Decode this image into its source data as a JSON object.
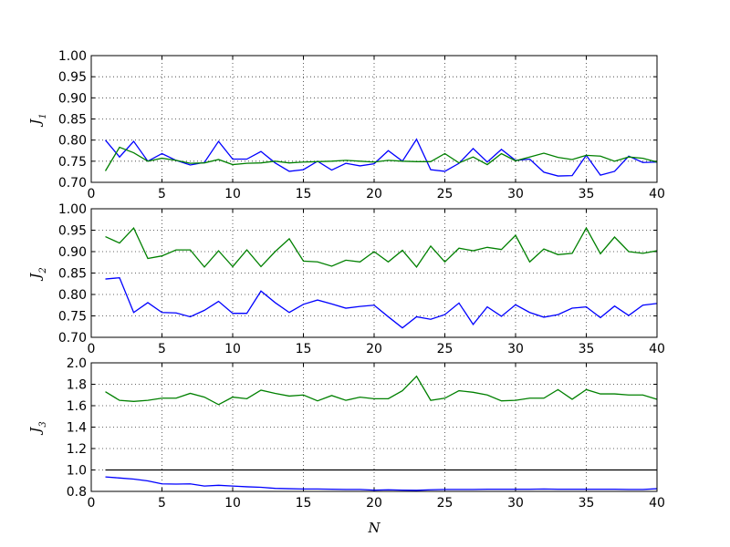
{
  "chart_data": [
    {
      "type": "line",
      "ylabel": "J",
      "ylabel_sub": "1",
      "xlim": [
        0,
        40
      ],
      "ylim": [
        0.7,
        1.0
      ],
      "xticks": [
        "0",
        "5",
        "10",
        "15",
        "20",
        "25",
        "30",
        "35",
        "40"
      ],
      "yticks": [
        "0.70",
        "0.75",
        "0.80",
        "0.85",
        "0.90",
        "0.95",
        "1.00"
      ],
      "grid": true,
      "x": [
        1,
        2,
        3,
        4,
        5,
        6,
        7,
        8,
        9,
        10,
        11,
        12,
        13,
        14,
        15,
        16,
        17,
        18,
        19,
        20,
        21,
        22,
        23,
        24,
        25,
        26,
        27,
        28,
        29,
        30,
        31,
        32,
        33,
        34,
        35,
        36,
        37,
        38,
        39,
        40
      ],
      "series": [
        {
          "color": "#0000ff",
          "values": [
            0.8,
            0.76,
            0.797,
            0.75,
            0.768,
            0.752,
            0.741,
            0.747,
            0.797,
            0.755,
            0.755,
            0.773,
            0.746,
            0.726,
            0.73,
            0.75,
            0.729,
            0.745,
            0.739,
            0.744,
            0.775,
            0.75,
            0.802,
            0.73,
            0.726,
            0.745,
            0.78,
            0.748,
            0.778,
            0.752,
            0.755,
            0.724,
            0.715,
            0.716,
            0.764,
            0.717,
            0.726,
            0.762,
            0.747,
            0.748
          ]
        },
        {
          "color": "#008000",
          "values": [
            0.727,
            0.783,
            0.77,
            0.75,
            0.757,
            0.752,
            0.745,
            0.746,
            0.754,
            0.742,
            0.745,
            0.746,
            0.75,
            0.746,
            0.748,
            0.749,
            0.75,
            0.752,
            0.75,
            0.748,
            0.752,
            0.75,
            0.749,
            0.749,
            0.768,
            0.746,
            0.76,
            0.742,
            0.768,
            0.751,
            0.76,
            0.769,
            0.759,
            0.754,
            0.764,
            0.762,
            0.75,
            0.76,
            0.757,
            0.748
          ]
        }
      ]
    },
    {
      "type": "line",
      "ylabel": "J",
      "ylabel_sub": "2",
      "xlim": [
        0,
        40
      ],
      "ylim": [
        0.7,
        1.0
      ],
      "xticks": [
        "0",
        "5",
        "10",
        "15",
        "20",
        "25",
        "30",
        "35",
        "40"
      ],
      "yticks": [
        "0.70",
        "0.75",
        "0.80",
        "0.85",
        "0.90",
        "0.95",
        "1.00"
      ],
      "grid": true,
      "x": [
        1,
        2,
        3,
        4,
        5,
        6,
        7,
        8,
        9,
        10,
        11,
        12,
        13,
        14,
        15,
        16,
        17,
        18,
        19,
        20,
        21,
        22,
        23,
        24,
        25,
        26,
        27,
        28,
        29,
        30,
        31,
        32,
        33,
        34,
        35,
        36,
        37,
        38,
        39,
        40
      ],
      "series": [
        {
          "color": "#0000ff",
          "values": [
            0.836,
            0.839,
            0.758,
            0.781,
            0.758,
            0.757,
            0.748,
            0.763,
            0.784,
            0.756,
            0.756,
            0.808,
            0.781,
            0.758,
            0.777,
            0.787,
            0.778,
            0.768,
            0.772,
            0.775,
            0.748,
            0.722,
            0.748,
            0.742,
            0.753,
            0.78,
            0.73,
            0.771,
            0.749,
            0.776,
            0.758,
            0.747,
            0.753,
            0.768,
            0.771,
            0.746,
            0.773,
            0.751,
            0.775,
            0.779
          ]
        },
        {
          "color": "#008000",
          "values": [
            0.935,
            0.92,
            0.955,
            0.884,
            0.89,
            0.904,
            0.904,
            0.864,
            0.902,
            0.865,
            0.904,
            0.865,
            0.9,
            0.93,
            0.878,
            0.876,
            0.866,
            0.88,
            0.876,
            0.9,
            0.876,
            0.903,
            0.864,
            0.913,
            0.876,
            0.908,
            0.902,
            0.91,
            0.905,
            0.938,
            0.876,
            0.906,
            0.893,
            0.896,
            0.955,
            0.895,
            0.934,
            0.9,
            0.896,
            0.902
          ]
        }
      ]
    },
    {
      "type": "line",
      "ylabel": "J",
      "ylabel_sub": "3",
      "xlabel": "N",
      "xlim": [
        0,
        40
      ],
      "ylim": [
        0.8,
        2.0
      ],
      "xticks": [
        "0",
        "5",
        "10",
        "15",
        "20",
        "25",
        "30",
        "35",
        "40"
      ],
      "yticks": [
        "0.8",
        "1.0",
        "1.2",
        "1.4",
        "1.6",
        "1.8",
        "2.0"
      ],
      "grid": true,
      "x": [
        1,
        2,
        3,
        4,
        5,
        6,
        7,
        8,
        9,
        10,
        11,
        12,
        13,
        14,
        15,
        16,
        17,
        18,
        19,
        20,
        21,
        22,
        23,
        24,
        25,
        26,
        27,
        28,
        29,
        30,
        31,
        32,
        33,
        34,
        35,
        36,
        37,
        38,
        39,
        40
      ],
      "series": [
        {
          "color": "#000000",
          "values": [
            1.0,
            1.0,
            1.0,
            1.0,
            1.0,
            1.0,
            1.0,
            1.0,
            1.0,
            1.0,
            1.0,
            1.0,
            1.0,
            1.0,
            1.0,
            1.0,
            1.0,
            1.0,
            1.0,
            1.0,
            1.0,
            1.0,
            1.0,
            1.0,
            1.0,
            1.0,
            1.0,
            1.0,
            1.0,
            1.0,
            1.0,
            1.0,
            1.0,
            1.0,
            1.0,
            1.0,
            1.0,
            1.0,
            1.0,
            1.0
          ]
        },
        {
          "color": "#0000ff",
          "values": [
            0.935,
            0.925,
            0.915,
            0.898,
            0.87,
            0.868,
            0.87,
            0.85,
            0.857,
            0.85,
            0.843,
            0.838,
            0.828,
            0.825,
            0.822,
            0.822,
            0.82,
            0.818,
            0.818,
            0.812,
            0.815,
            0.812,
            0.81,
            0.815,
            0.818,
            0.818,
            0.818,
            0.82,
            0.82,
            0.82,
            0.82,
            0.822,
            0.82,
            0.82,
            0.82,
            0.82,
            0.82,
            0.818,
            0.818,
            0.825
          ]
        },
        {
          "color": "#008000",
          "values": [
            1.73,
            1.65,
            1.64,
            1.65,
            1.67,
            1.67,
            1.715,
            1.68,
            1.61,
            1.68,
            1.665,
            1.745,
            1.715,
            1.69,
            1.7,
            1.645,
            1.695,
            1.65,
            1.68,
            1.665,
            1.665,
            1.74,
            1.875,
            1.65,
            1.67,
            1.74,
            1.725,
            1.7,
            1.645,
            1.65,
            1.67,
            1.67,
            1.75,
            1.66,
            1.75,
            1.71,
            1.71,
            1.7,
            1.7,
            1.66
          ]
        }
      ]
    }
  ]
}
